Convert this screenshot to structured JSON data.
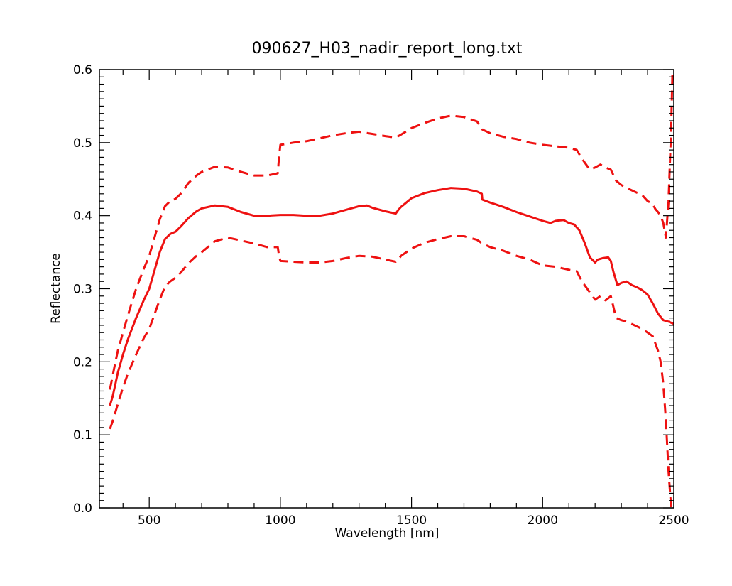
{
  "chart_data": {
    "type": "line",
    "title": "090627_H03_nadir_report_long.txt",
    "xlabel": "Wavelength [nm]",
    "ylabel": "Reflectance",
    "xlim": [
      310,
      2500
    ],
    "ylim": [
      0.0,
      0.6
    ],
    "x_ticks": [
      500,
      1000,
      1500,
      2000,
      2500
    ],
    "y_ticks": [
      0.0,
      0.1,
      0.2,
      0.3,
      0.4,
      0.5,
      0.6
    ],
    "x_tick_labels": [
      "500",
      "1000",
      "1500",
      "2000",
      "2500"
    ],
    "y_tick_labels": [
      "0.0",
      "0.1",
      "0.2",
      "0.3",
      "0.4",
      "0.5",
      "0.6"
    ],
    "grid": false,
    "legend": "none",
    "color": "#ee1111",
    "series": [
      {
        "style": "dashed",
        "x": [
          350,
          360,
          370,
          380,
          400,
          420,
          450,
          480,
          500,
          520,
          540,
          560,
          580,
          600,
          620,
          650,
          680,
          700,
          750,
          800,
          850,
          900,
          950,
          990,
          995,
          1000,
          1050,
          1100,
          1150,
          1200,
          1250,
          1300,
          1350,
          1400,
          1440,
          1450,
          1460,
          1500,
          1550,
          1600,
          1650,
          1700,
          1750,
          1770,
          1800,
          1850,
          1900,
          1950,
          2000,
          2050,
          2100,
          2130,
          2150,
          2180,
          2200,
          2220,
          2240,
          2260,
          2280,
          2300,
          2320,
          2350,
          2380,
          2400,
          2420,
          2430,
          2440,
          2450,
          2460,
          2470,
          2480,
          2490,
          2495
        ],
        "y": [
          0.162,
          0.18,
          0.198,
          0.215,
          0.24,
          0.265,
          0.3,
          0.328,
          0.345,
          0.37,
          0.395,
          0.413,
          0.42,
          0.423,
          0.43,
          0.445,
          0.455,
          0.46,
          0.467,
          0.466,
          0.46,
          0.455,
          0.455,
          0.458,
          0.48,
          0.497,
          0.5,
          0.502,
          0.506,
          0.51,
          0.513,
          0.515,
          0.512,
          0.509,
          0.507,
          0.509,
          0.511,
          0.52,
          0.527,
          0.533,
          0.537,
          0.535,
          0.529,
          0.518,
          0.513,
          0.508,
          0.505,
          0.5,
          0.497,
          0.495,
          0.493,
          0.49,
          0.478,
          0.463,
          0.466,
          0.47,
          0.466,
          0.463,
          0.448,
          0.442,
          0.438,
          0.433,
          0.428,
          0.42,
          0.416,
          0.409,
          0.405,
          0.4,
          0.39,
          0.37,
          0.42,
          0.52,
          0.6
        ]
      },
      {
        "style": "solid",
        "x": [
          350,
          360,
          370,
          380,
          400,
          420,
          450,
          480,
          500,
          520,
          540,
          560,
          580,
          600,
          620,
          650,
          680,
          700,
          750,
          800,
          850,
          900,
          950,
          1000,
          1050,
          1100,
          1150,
          1200,
          1250,
          1300,
          1330,
          1350,
          1400,
          1440,
          1450,
          1460,
          1480,
          1500,
          1550,
          1600,
          1650,
          1700,
          1750,
          1768,
          1770,
          1800,
          1850,
          1900,
          1950,
          2000,
          2030,
          2050,
          2080,
          2100,
          2120,
          2140,
          2160,
          2180,
          2200,
          2210,
          2230,
          2250,
          2260,
          2270,
          2285,
          2300,
          2320,
          2340,
          2360,
          2380,
          2400,
          2420,
          2440,
          2460,
          2480,
          2500
        ],
        "y": [
          0.14,
          0.152,
          0.168,
          0.185,
          0.21,
          0.232,
          0.26,
          0.285,
          0.3,
          0.325,
          0.35,
          0.368,
          0.375,
          0.378,
          0.385,
          0.397,
          0.406,
          0.41,
          0.414,
          0.412,
          0.405,
          0.4,
          0.4,
          0.401,
          0.401,
          0.4,
          0.4,
          0.403,
          0.408,
          0.413,
          0.414,
          0.411,
          0.406,
          0.403,
          0.408,
          0.412,
          0.418,
          0.424,
          0.431,
          0.435,
          0.438,
          0.437,
          0.433,
          0.43,
          0.422,
          0.418,
          0.412,
          0.405,
          0.399,
          0.393,
          0.39,
          0.393,
          0.394,
          0.39,
          0.388,
          0.38,
          0.363,
          0.343,
          0.336,
          0.34,
          0.342,
          0.343,
          0.338,
          0.323,
          0.305,
          0.308,
          0.31,
          0.305,
          0.302,
          0.298,
          0.292,
          0.28,
          0.266,
          0.257,
          0.255,
          0.252
        ]
      },
      {
        "style": "dashed",
        "x": [
          350,
          360,
          370,
          380,
          400,
          420,
          450,
          480,
          500,
          520,
          540,
          560,
          580,
          600,
          620,
          650,
          680,
          700,
          750,
          800,
          850,
          900,
          950,
          990,
          995,
          1000,
          1050,
          1100,
          1150,
          1200,
          1250,
          1300,
          1350,
          1400,
          1440,
          1450,
          1460,
          1500,
          1550,
          1600,
          1650,
          1700,
          1750,
          1770,
          1800,
          1850,
          1900,
          1950,
          2000,
          2050,
          2100,
          2130,
          2150,
          2180,
          2200,
          2220,
          2240,
          2260,
          2280,
          2300,
          2320,
          2350,
          2380,
          2400,
          2420,
          2430,
          2440,
          2450,
          2460,
          2470,
          2480,
          2490
        ],
        "y": [
          0.108,
          0.118,
          0.13,
          0.142,
          0.165,
          0.185,
          0.21,
          0.233,
          0.245,
          0.265,
          0.285,
          0.303,
          0.31,
          0.315,
          0.322,
          0.335,
          0.345,
          0.35,
          0.365,
          0.37,
          0.366,
          0.362,
          0.357,
          0.357,
          0.345,
          0.338,
          0.337,
          0.336,
          0.336,
          0.338,
          0.342,
          0.345,
          0.344,
          0.34,
          0.337,
          0.34,
          0.345,
          0.355,
          0.363,
          0.368,
          0.372,
          0.372,
          0.367,
          0.362,
          0.357,
          0.352,
          0.345,
          0.34,
          0.332,
          0.33,
          0.326,
          0.324,
          0.31,
          0.295,
          0.285,
          0.29,
          0.284,
          0.29,
          0.26,
          0.257,
          0.255,
          0.25,
          0.245,
          0.24,
          0.235,
          0.225,
          0.215,
          0.2,
          0.17,
          0.12,
          0.05,
          0.0
        ]
      }
    ]
  }
}
